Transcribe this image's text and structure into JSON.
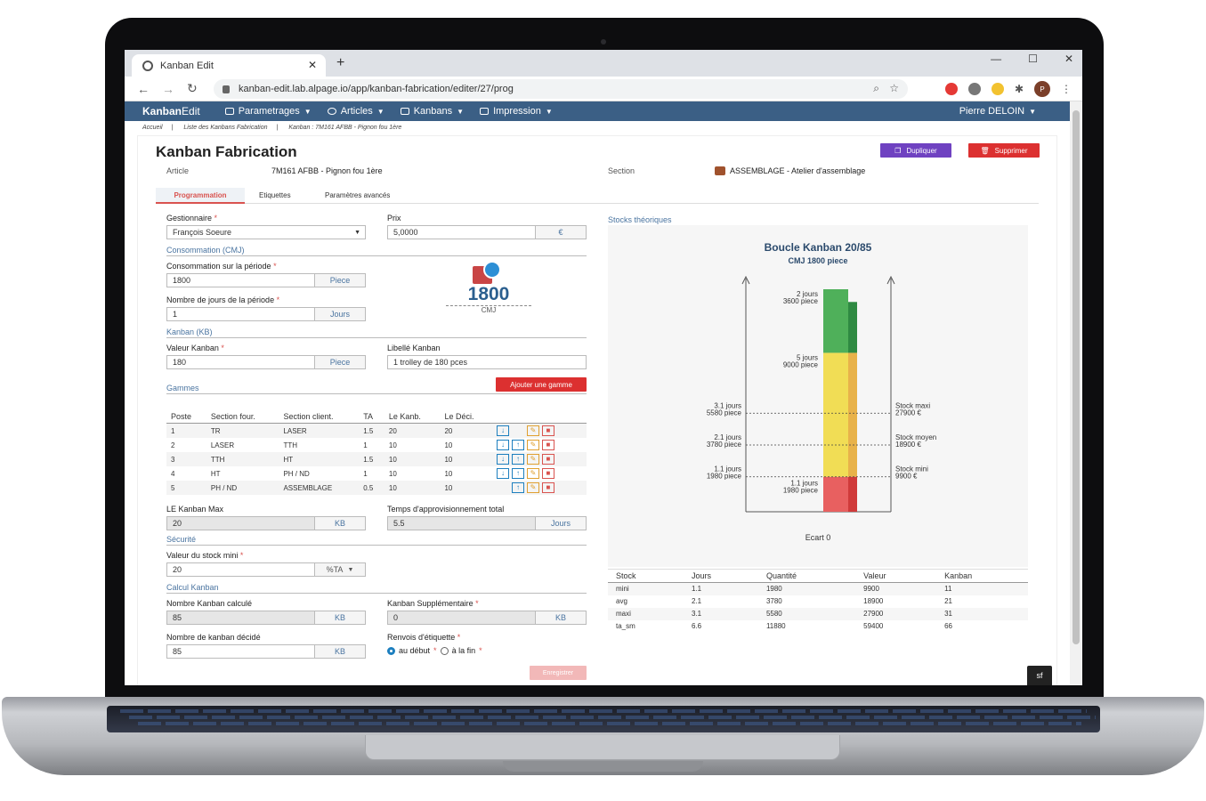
{
  "browser": {
    "tab_title": "Kanban Edit",
    "url": "kanban-edit.lab.alpage.io/app/kanban-fabrication/editer/27/prog",
    "profile_initial": "P"
  },
  "nav": {
    "brand_bold": "Kanban",
    "brand_light": "Edit",
    "menus": [
      "Parametrages",
      "Articles",
      "Kanbans",
      "Impression"
    ],
    "user": "Pierre DELOIN",
    "color": "#3b5f85"
  },
  "breadcrumb": [
    "Accueil",
    "Liste des Kanbans Fabrication",
    "Kanban : 7M161 AFBB - Pignon fou 1ère"
  ],
  "page": {
    "title": "Kanban Fabrication",
    "duplicate_label": "Dupliquer",
    "delete_label": "Supprimer",
    "article_label": "Article",
    "article_value": "7M161 AFBB - Pignon fou 1ère",
    "section_label": "Section",
    "section_value": "ASSEMBLAGE - Atelier d'assemblage",
    "tabs": [
      "Programmation",
      "Etiquettes",
      "Paramètres avancés"
    ]
  },
  "form": {
    "gestionnaire_label": "Gestionnaire",
    "gestionnaire_value": "François Soeure",
    "prix_label": "Prix",
    "prix_value": "5,0000",
    "prix_unit": "€",
    "cmj_section": "Consommation (CMJ)",
    "conso_label": "Consommation sur la période",
    "conso_value": "1800",
    "conso_unit": "Piece",
    "jours_label": "Nombre de jours de la période",
    "jours_value": "1",
    "jours_unit": "Jours",
    "cmj_value": "1800",
    "cmj_caption": "CMJ",
    "kb_section": "Kanban (KB)",
    "valeur_label": "Valeur Kanban",
    "valeur_value": "180",
    "valeur_unit": "Piece",
    "libelle_label": "Libellé Kanban",
    "libelle_value": "1 trolley de 180 pces",
    "gammes_section": "Gammes",
    "add_gamme_label": "Ajouter une gamme",
    "max_label": "LE Kanban Max",
    "max_value": "20",
    "max_unit": "KB",
    "temps_label": "Temps d'approvisionnement total",
    "temps_value": "5.5",
    "temps_unit": "Jours",
    "securite_section": "Sécurité",
    "stockmini_label": "Valeur du stock mini",
    "stockmini_value": "20",
    "stockmini_unit": "%TA",
    "calcul_section": "Calcul Kanban",
    "calcule_label": "Nombre Kanban calculé",
    "calcule_value": "85",
    "calcule_unit": "KB",
    "supp_label": "Kanban Supplémentaire",
    "supp_value": "0",
    "supp_unit": "KB",
    "decide_label": "Nombre de kanban décidé",
    "decide_value": "85",
    "decide_unit": "KB",
    "renvois_label": "Renvois d'étiquette",
    "renvois_opt1": "au début",
    "renvois_opt2": "à la fin",
    "save_label": "Enregistrer",
    "required_mark": "*"
  },
  "gammes": {
    "headers": [
      "Poste",
      "Section four.",
      "Section client.",
      "TA",
      "Le Kanb.",
      "Le Déci."
    ],
    "rows": [
      [
        "1",
        "TR",
        "LASER",
        "1.5",
        "20",
        "20"
      ],
      [
        "2",
        "LASER",
        "TTH",
        "1",
        "10",
        "10"
      ],
      [
        "3",
        "TTH",
        "HT",
        "1.5",
        "10",
        "10"
      ],
      [
        "4",
        "HT",
        "PH / ND",
        "1",
        "10",
        "10"
      ],
      [
        "5",
        "PH / ND",
        "ASSEMBLAGE",
        "0.5",
        "10",
        "10"
      ]
    ]
  },
  "stocks": {
    "section": "Stocks théoriques",
    "headers": [
      "Stock",
      "Jours",
      "Quantité",
      "Valeur",
      "Kanban"
    ],
    "rows": [
      [
        "mini",
        "1.1",
        "1980",
        "9900",
        "11"
      ],
      [
        "avg",
        "2.1",
        "3780",
        "18900",
        "21"
      ],
      [
        "maxi",
        "3.1",
        "5580",
        "27900",
        "31"
      ],
      [
        "ta_sm",
        "6.6",
        "11880",
        "59400",
        "66"
      ]
    ]
  },
  "chart_data": {
    "type": "bar",
    "title": "Boucle Kanban 20/85",
    "subtitle": "CMJ 1800 piece",
    "ylim": [
      0,
      12600
    ],
    "stack_left": [
      {
        "from": 0,
        "to": 1980,
        "color": "#e86060"
      },
      {
        "from": 1980,
        "to": 9000,
        "color": "#f1dd55"
      },
      {
        "from": 9000,
        "to": 12600,
        "color": "#4fb05a"
      }
    ],
    "stack_right": [
      {
        "from": 0,
        "to": 1980,
        "color": "#d03a3a"
      },
      {
        "from": 1980,
        "to": 9000,
        "color": "#e8b24a"
      },
      {
        "from": 9000,
        "to": 11880,
        "color": "#2f8a42"
      }
    ],
    "top_labels": [
      {
        "value": 12600,
        "line1": "2 jours",
        "line2": "3600 piece"
      },
      {
        "value": 9000,
        "line1": "5 jours",
        "line2": "9000 piece"
      }
    ],
    "levels": [
      {
        "value": 5580,
        "left1": "3.1 jours",
        "left2": "5580 piece",
        "right1": "Stock maxi",
        "right2": "27900 €"
      },
      {
        "value": 3780,
        "left1": "2.1 jours",
        "left2": "3780 piece",
        "right1": "Stock moyen",
        "right2": "18900 €"
      },
      {
        "value": 1980,
        "left1": "1.1 jours",
        "left2": "1980 piece",
        "right1": "Stock mini",
        "right2": "9900 €"
      }
    ],
    "bottom_label1": "1.1 jours",
    "bottom_label2": "1980 piece",
    "footer": "Ecart 0"
  }
}
